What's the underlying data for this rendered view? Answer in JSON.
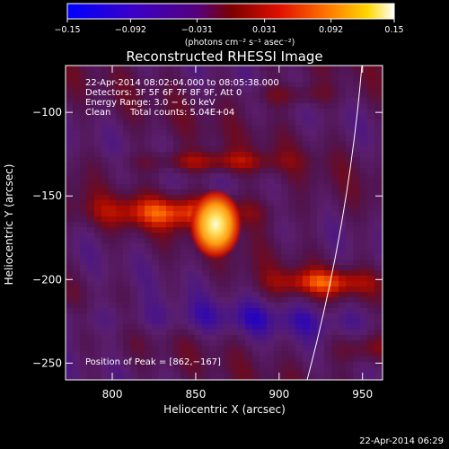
{
  "chart_data": {
    "type": "heatmap",
    "title": "Reconstructed RHESSI Image",
    "xlabel": "Heliocentric X (arcsec)",
    "ylabel": "Heliocentric Y (arcsec)",
    "xlim": [
      772,
      962
    ],
    "ylim": [
      -260,
      -72
    ],
    "x_ticks": [
      800,
      850,
      900,
      950
    ],
    "y_ticks": [
      -100,
      -150,
      -200,
      -250
    ],
    "x_tick_labels": [
      "800",
      "850",
      "900",
      "950"
    ],
    "y_tick_labels": [
      "−100",
      "−150",
      "−200",
      "−250"
    ],
    "colorbar": {
      "min": -0.15,
      "max": 0.15,
      "tick_values": [
        -0.15,
        -0.092,
        -0.031,
        0.031,
        0.092,
        0.15
      ],
      "tick_labels": [
        "−0.15",
        "−0.092",
        "−0.031",
        "0.031",
        "0.092",
        "0.15"
      ],
      "unit_label": "(photons cm⁻² s⁻¹ asec⁻²)"
    },
    "annotations": {
      "time_range": "22-Apr-2014 08:02:04.000 to 08:05:38.000",
      "detectors": "Detectors: 3F 5F 6F 7F 8F 9F, Att 0",
      "energy": "Energy Range: 3.0 − 6.0 keV",
      "method": "Clean",
      "counts": "Total counts: 5.04E+04",
      "peak": "Position of Peak = [862,−167]"
    },
    "peak": {
      "x": 862,
      "y": -167
    },
    "footer_timestamp": "22-Apr-2014 06:29"
  }
}
